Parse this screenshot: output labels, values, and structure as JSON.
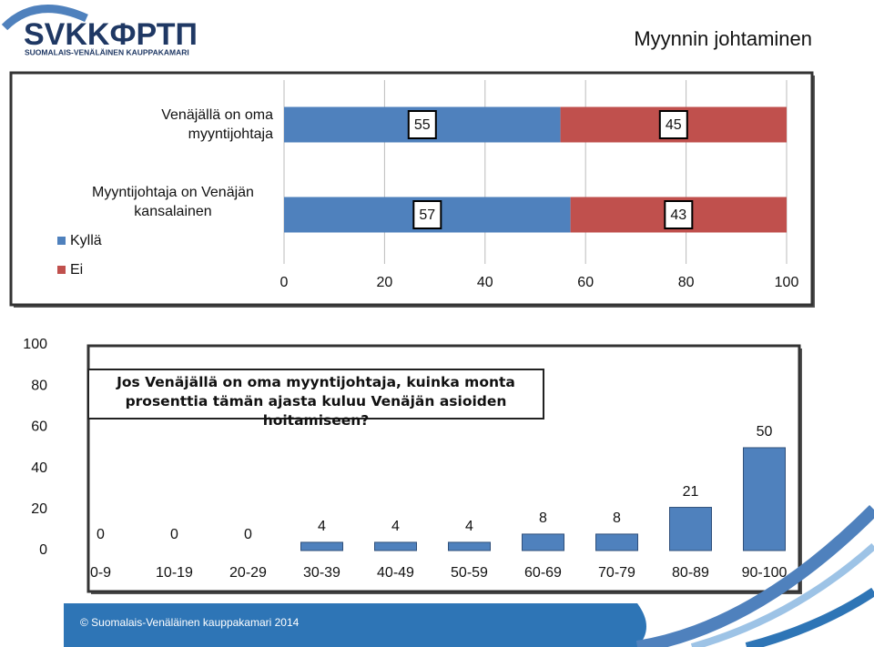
{
  "header": {
    "logo": "SVKKФРТП",
    "logo_subtitle": "SUOMALAIS-VENÄLÄINEN KAUPPAKAMARI",
    "title": "Myynnin johtaminen"
  },
  "chart_data": [
    {
      "type": "hbar-stacked",
      "categories": [
        "Venäjällä on oma myyntijohtaja",
        "Myyntijohtaja on Venäjän kansalainen"
      ],
      "series": [
        {
          "name": "Kyllä",
          "color": "#4f81bd",
          "values": [
            55,
            57
          ]
        },
        {
          "name": "Ei",
          "color": "#c0504d",
          "values": [
            45,
            43
          ]
        }
      ],
      "xlim": [
        0,
        100
      ],
      "xticks": [
        0,
        20,
        40,
        60,
        80,
        100
      ],
      "grid": true,
      "legend": "bottom-left"
    },
    {
      "type": "bar",
      "annotation": "Jos Venäjällä on oma myyntijohtaja, kuinka monta prosenttia tämän ajasta kuluu Venäjän asioiden hoitamiseen?",
      "categories": [
        "0-9",
        "10-19",
        "20-29",
        "30-39",
        "40-49",
        "50-59",
        "60-69",
        "70-79",
        "80-89",
        "90-100"
      ],
      "values": [
        0,
        0,
        0,
        4,
        4,
        4,
        8,
        8,
        21,
        50
      ],
      "color": "#4f81bd",
      "ylim": [
        0,
        100
      ],
      "yticks": [
        0,
        20,
        40,
        60,
        80,
        100
      ],
      "grid": false
    }
  ],
  "footer": "© Suomalais-Venäläinen kauppakamari 2014"
}
